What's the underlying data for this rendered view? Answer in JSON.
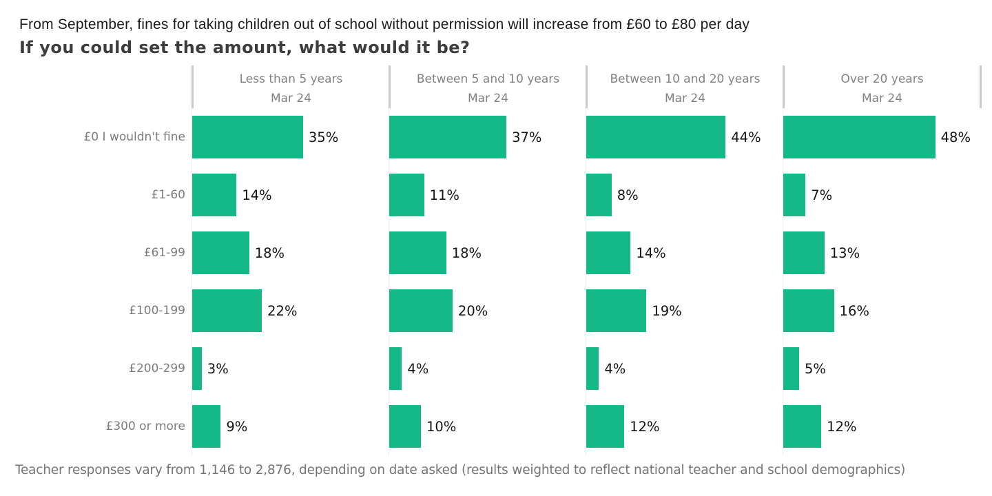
{
  "header": {
    "title": "From September, fines for taking children out of school without permission will increase from £60 to £80 per day",
    "subtitle": "If you could set the amount, what would it be?"
  },
  "footer": {
    "note": "Teacher responses vary from 1,146 to 2,876, depending on date asked (results weighted to reflect national teacher and school demographics)"
  },
  "colors": {
    "bar": "#15b987",
    "panel_divider": "#c9c9c9",
    "axis_dotted": "#e0e0e0",
    "label_gray": "#7c7c7c"
  },
  "chart_data": {
    "type": "bar",
    "orientation": "horizontal",
    "title": "If you could set the amount, what would it be?",
    "categories": [
      "£0 I wouldn't fine",
      "£1-60",
      "£61-99",
      "£100-199",
      "£200-299",
      "£300 or more"
    ],
    "panels": [
      {
        "label": "Less than 5 years",
        "date": "Mar 24",
        "values": [
          35,
          14,
          18,
          22,
          3,
          9
        ]
      },
      {
        "label": "Between 5 and 10 years",
        "date": "Mar 24",
        "values": [
          37,
          11,
          18,
          20,
          4,
          10
        ]
      },
      {
        "label": "Between 10 and 20 years",
        "date": "Mar 24",
        "values": [
          44,
          8,
          14,
          19,
          4,
          12
        ]
      },
      {
        "label": "Over 20 years",
        "date": "Mar 24",
        "values": [
          48,
          7,
          13,
          16,
          5,
          12
        ]
      }
    ],
    "unit": "%",
    "xlim": [
      0,
      62
    ],
    "grid": false,
    "legend": false,
    "bar_color": "#15b987"
  }
}
